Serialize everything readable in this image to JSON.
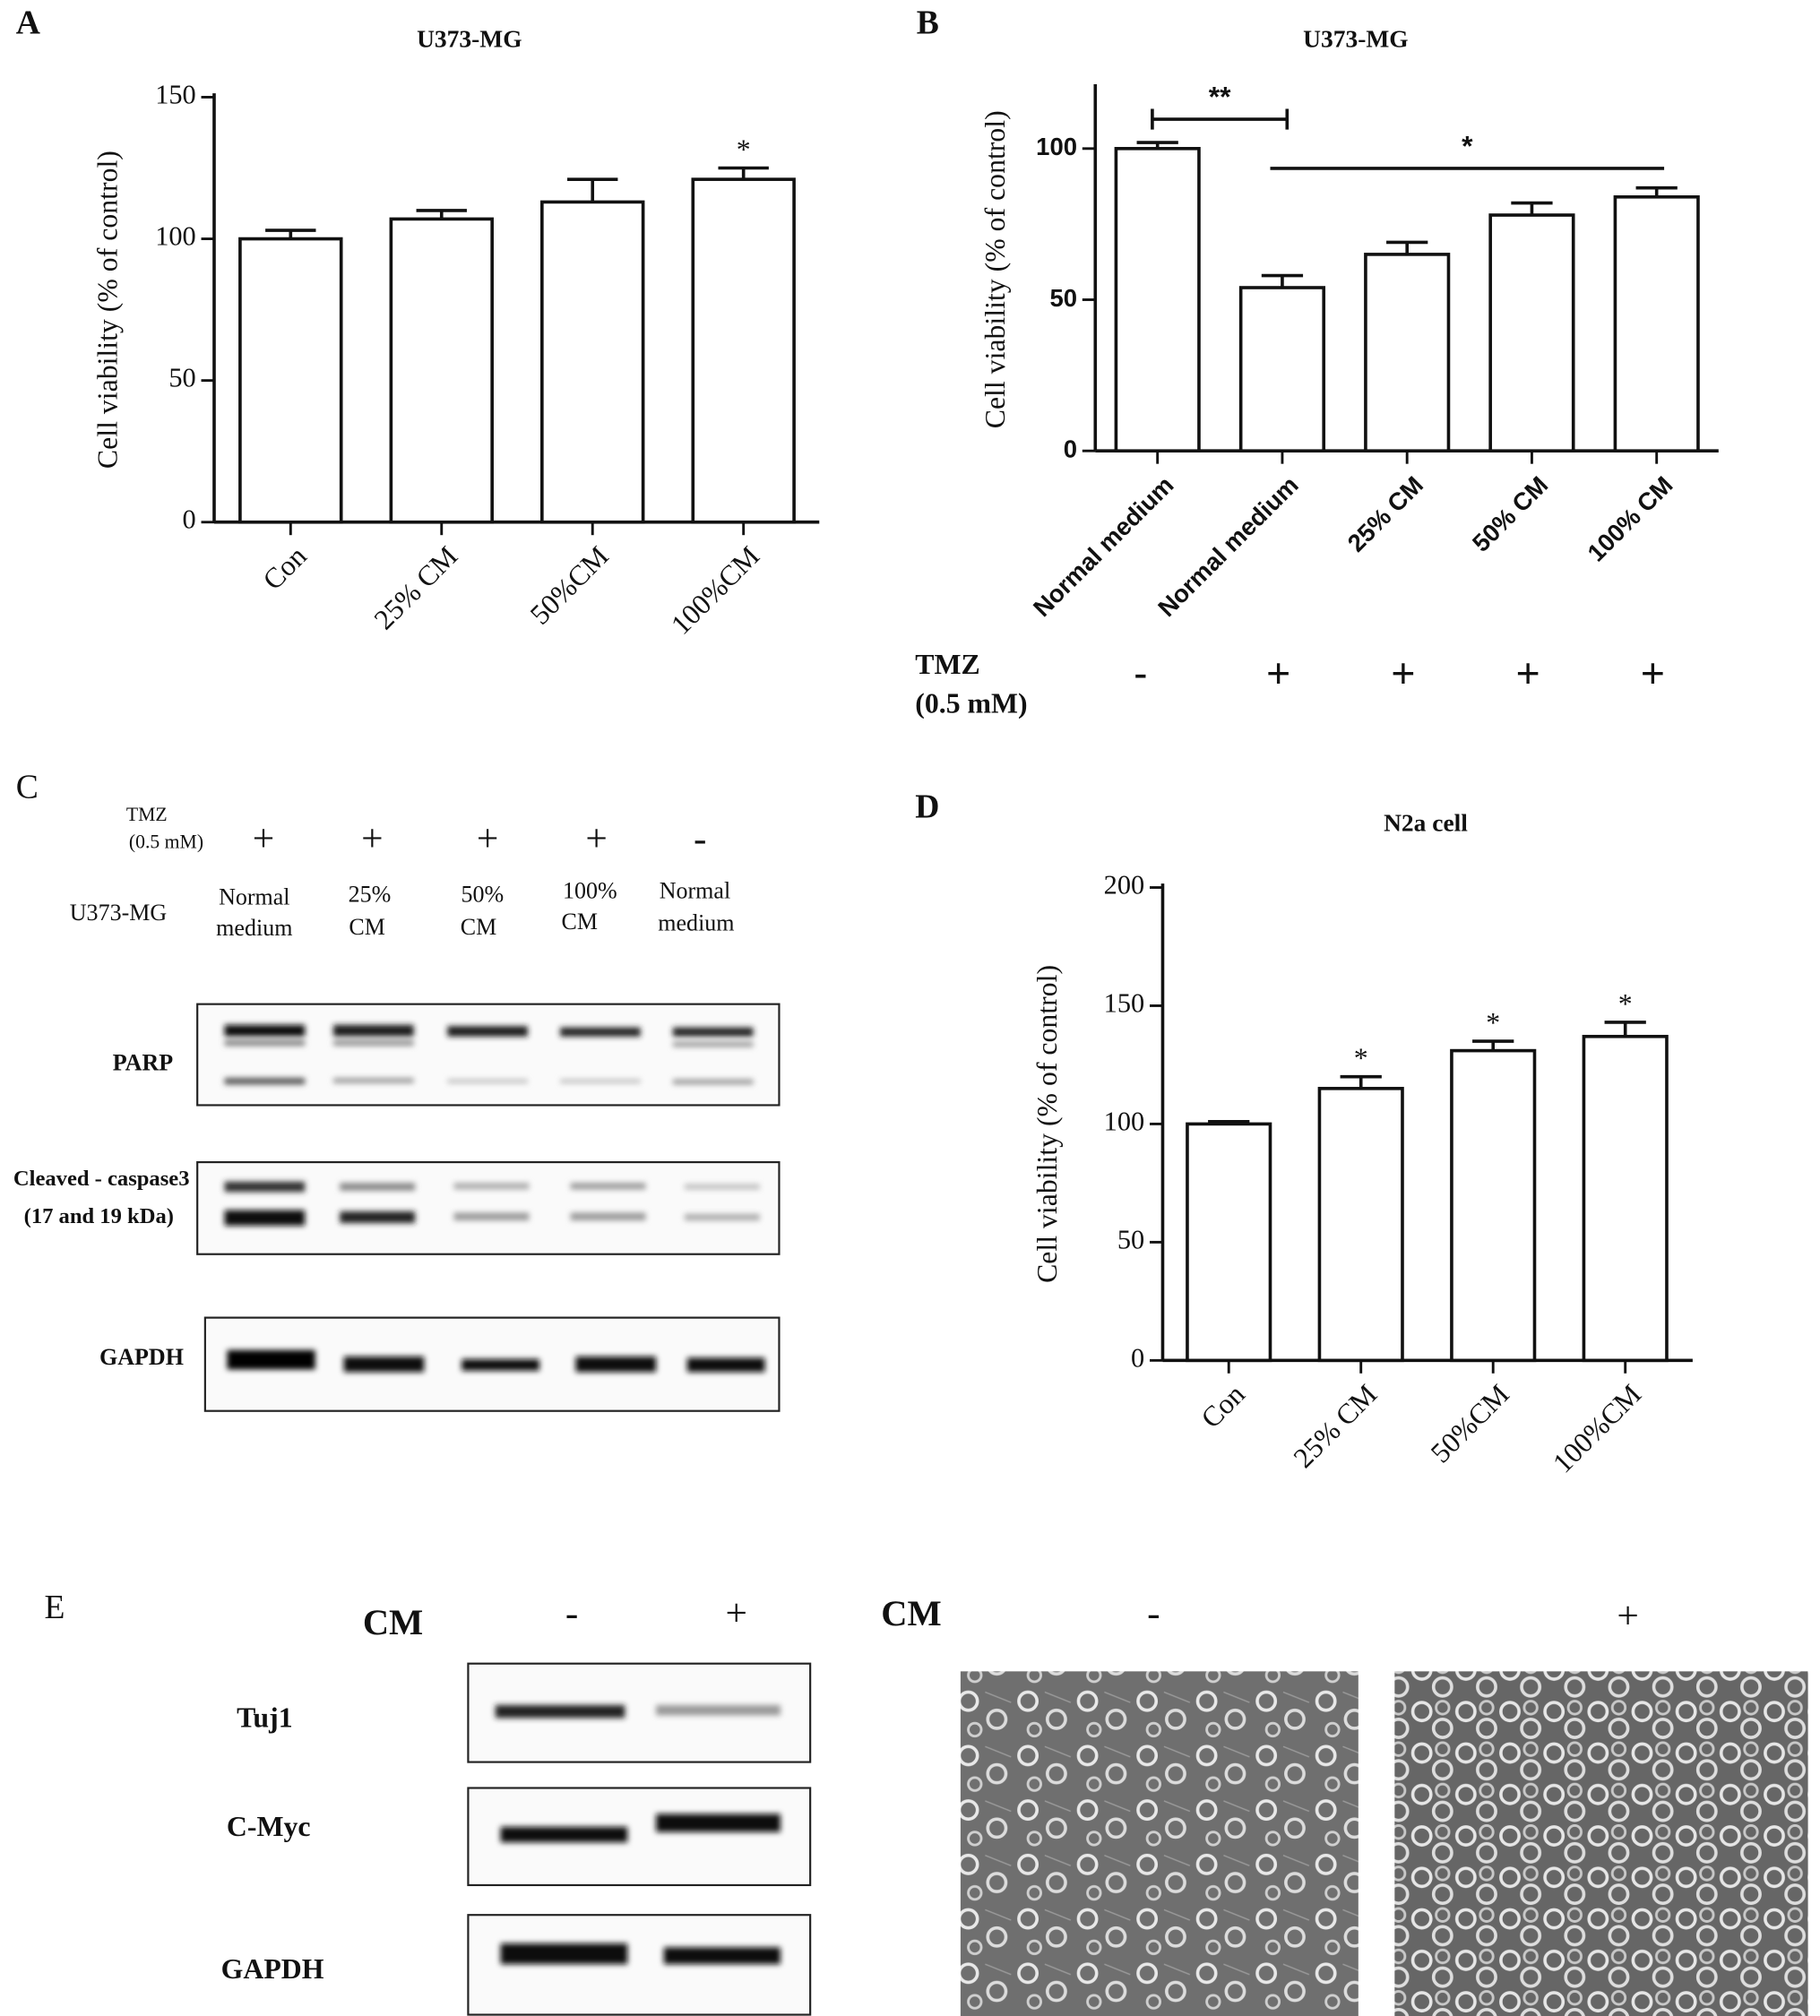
{
  "chart_data": [
    {
      "type": "bar",
      "panel_label": "A",
      "title": "U373-MG",
      "y_label": "Cell viability (% of control)",
      "categories": [
        "Con",
        "25% CM",
        "50%CM",
        "100%CM"
      ],
      "values": [
        100,
        107,
        113,
        121
      ],
      "errors": [
        3,
        3,
        8,
        4
      ],
      "significance": [
        null,
        null,
        null,
        "*"
      ],
      "ylim": [
        0,
        150
      ],
      "yticks": [
        0,
        50,
        100,
        150
      ]
    },
    {
      "type": "bar",
      "panel_label": "B",
      "title": "U373-MG",
      "y_label": "Cell viability (% of control)",
      "categories": [
        "Normal medium",
        "Normal medium",
        "25% CM",
        "50% CM",
        "100% CM"
      ],
      "values": [
        100,
        54,
        65,
        78,
        84
      ],
      "errors": [
        2,
        4,
        4,
        4,
        3
      ],
      "ylim": [
        0,
        120
      ],
      "yticks": [
        0,
        50,
        100
      ],
      "annotations": [
        "**",
        "*"
      ],
      "treatment_label": "TMZ",
      "treatment_dose": "(0.5 mM)",
      "treatment": [
        "-",
        "+",
        "+",
        "+",
        "+"
      ]
    },
    {
      "type": "bar",
      "panel_label": "D",
      "title": "N2a cell",
      "y_label": "Cell viability (% of control)",
      "categories": [
        "Con",
        "25% CM",
        "50%CM",
        "100%CM"
      ],
      "values": [
        100,
        115,
        131,
        137
      ],
      "errors": [
        1,
        5,
        4,
        6
      ],
      "significance": [
        null,
        "*",
        "*",
        "*"
      ],
      "ylim": [
        0,
        200
      ],
      "yticks": [
        0,
        50,
        100,
        150,
        200
      ]
    }
  ],
  "blot_c": {
    "panel_label": "C",
    "tmz_label": "TMZ",
    "tmz_dose": "(0.5 mM)",
    "tmz_signs": [
      "+",
      "+",
      "+",
      "+",
      "-"
    ],
    "cell_label": "U373-MG",
    "lanes": [
      [
        "Normal",
        "medium"
      ],
      [
        "25%",
        "CM"
      ],
      [
        "50%",
        "CM"
      ],
      [
        "100%",
        "CM"
      ],
      [
        "Normal",
        "medium"
      ]
    ],
    "rows": [
      [
        "PARP"
      ],
      [
        "Cleaved - caspase3",
        "(17 and 19  kDa)"
      ],
      [
        "GAPDH"
      ]
    ]
  },
  "blot_e": {
    "panel_label": "E",
    "cm_label": "CM",
    "signs": [
      "-",
      "+"
    ],
    "rows": [
      "Tuj1",
      "C-Myc",
      "GAPDH"
    ],
    "image_cm_label": "CM",
    "image_signs": [
      "-",
      "+"
    ]
  }
}
